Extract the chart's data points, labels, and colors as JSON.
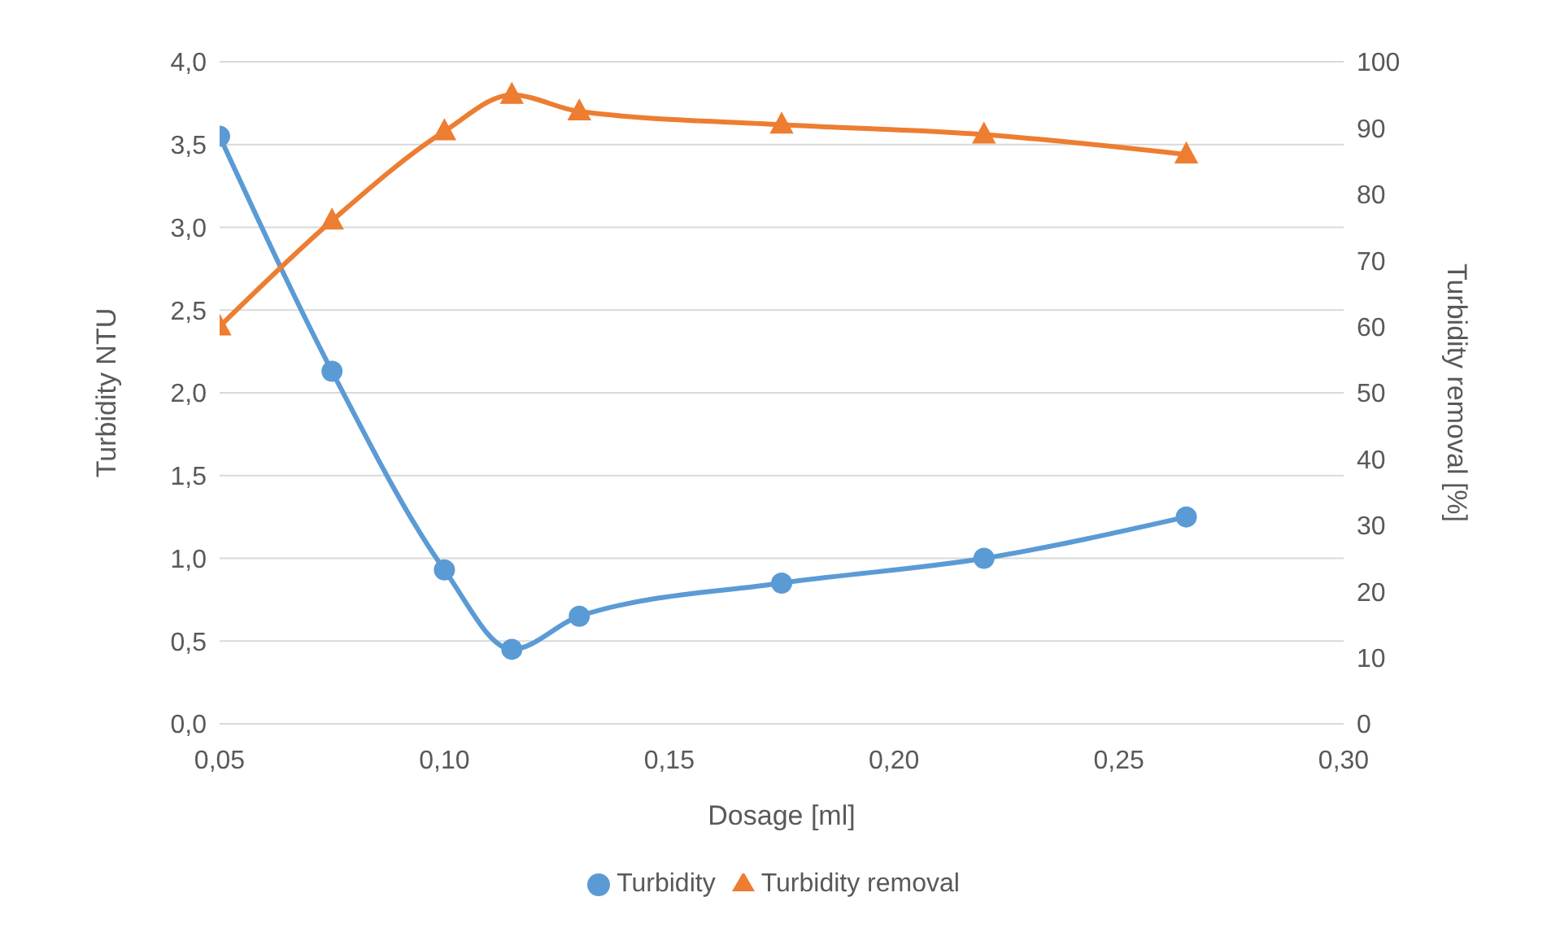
{
  "chart_data": {
    "type": "line",
    "xlabel": "Dosage [ml]",
    "ylabel": "Turbidity NTU",
    "y2label": "Turbidity removal [%]",
    "x": [
      0.05,
      0.075,
      0.1,
      0.115,
      0.13,
      0.175,
      0.22,
      0.265
    ],
    "series": [
      {
        "name": "Turbidity",
        "color": "#5b9bd5",
        "marker": "circle",
        "values": [
          3.55,
          2.13,
          0.93,
          0.45,
          0.65,
          0.85,
          1.0,
          1.25
        ]
      },
      {
        "name": "Turbidity removal",
        "color": "#ed7d31",
        "marker": "triangle",
        "axis": "y2",
        "values": [
          60,
          76,
          89.5,
          95,
          92.5,
          90.5,
          89,
          86
        ]
      }
    ],
    "xlim": [
      0.05,
      0.3
    ],
    "xticks": [
      {
        "value": 0.05,
        "label": "0,05"
      },
      {
        "value": 0.1,
        "label": "0,10"
      },
      {
        "value": 0.15,
        "label": "0,15"
      },
      {
        "value": 0.2,
        "label": "0,20"
      },
      {
        "value": 0.25,
        "label": "0,25"
      },
      {
        "value": 0.3,
        "label": "0,30"
      }
    ],
    "ylim": [
      0,
      4
    ],
    "yticks": [
      {
        "value": 0,
        "label": "0,0"
      },
      {
        "value": 0.5,
        "label": "0,5"
      },
      {
        "value": 1,
        "label": "1,0"
      },
      {
        "value": 1.5,
        "label": "1,5"
      },
      {
        "value": 2,
        "label": "2,0"
      },
      {
        "value": 2.5,
        "label": "2,5"
      },
      {
        "value": 3,
        "label": "3,0"
      },
      {
        "value": 3.5,
        "label": "3,5"
      },
      {
        "value": 4,
        "label": "4,0"
      }
    ],
    "y2lim": [
      0,
      100
    ],
    "y2ticks": [
      0,
      10,
      20,
      30,
      40,
      50,
      60,
      70,
      80,
      90,
      100
    ],
    "grid": "y",
    "legend": "bottom"
  }
}
